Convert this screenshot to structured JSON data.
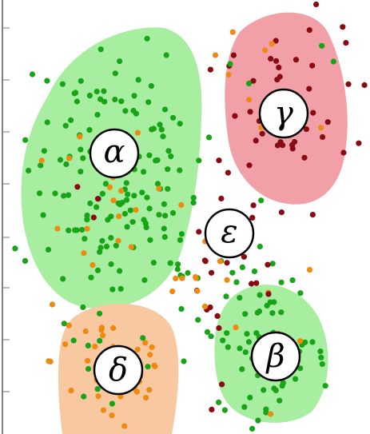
{
  "colors": {
    "green_region": "#a8eea0",
    "red_region": "#f1a0a8",
    "orange_region": "#f8c9a0",
    "green_dot": "#17a417",
    "orange_dot": "#ee8a0f",
    "darkred_dot": "#8a0a14"
  },
  "labels": {
    "alpha": "α",
    "beta": "β",
    "gamma": "γ",
    "delta": "δ",
    "epsilon": "ε"
  },
  "chart_data": {
    "type": "scatter",
    "classes": [
      "green",
      "orange",
      "darkred"
    ],
    "grid": false,
    "legend": "none"
  }
}
